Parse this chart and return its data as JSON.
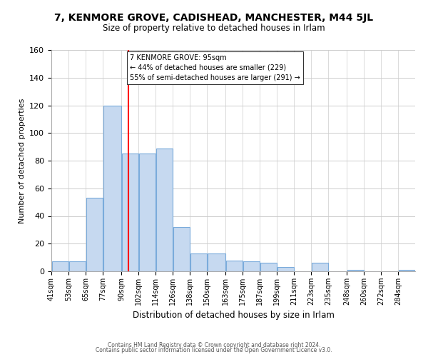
{
  "title": "7, KENMORE GROVE, CADISHEAD, MANCHESTER, M44 5JL",
  "subtitle": "Size of property relative to detached houses in Irlam",
  "xlabel": "Distribution of detached houses by size in Irlam",
  "ylabel": "Number of detached properties",
  "bin_labels": [
    "41sqm",
    "53sqm",
    "65sqm",
    "77sqm",
    "90sqm",
    "102sqm",
    "114sqm",
    "126sqm",
    "138sqm",
    "150sqm",
    "163sqm",
    "175sqm",
    "187sqm",
    "199sqm",
    "211sqm",
    "223sqm",
    "235sqm",
    "248sqm",
    "260sqm",
    "272sqm",
    "284sqm"
  ],
  "bar_heights": [
    7,
    7,
    53,
    120,
    85,
    85,
    89,
    32,
    13,
    13,
    8,
    7,
    6,
    3,
    0,
    6,
    0,
    1,
    0,
    0,
    1
  ],
  "bar_color": "#c6d9f0",
  "bar_edge_color": "#7aabdb",
  "vline_x": 95,
  "vline_color": "red",
  "annotation_line1": "7 KENMORE GROVE: 95sqm",
  "annotation_line2": "← 44% of detached houses are smaller (229)",
  "annotation_line3": "55% of semi-detached houses are larger (291) →",
  "annotation_box_color": "white",
  "annotation_box_edge": "#333333",
  "ylim": [
    0,
    160
  ],
  "yticks": [
    0,
    20,
    40,
    60,
    80,
    100,
    120,
    140,
    160
  ],
  "footer1": "Contains HM Land Registry data © Crown copyright and database right 2024.",
  "footer2": "Contains public sector information licensed under the Open Government Licence v3.0.",
  "bin_edges": [
    41,
    53,
    65,
    77,
    90,
    102,
    114,
    126,
    138,
    150,
    163,
    175,
    187,
    199,
    211,
    223,
    235,
    248,
    260,
    272,
    284,
    296
  ]
}
